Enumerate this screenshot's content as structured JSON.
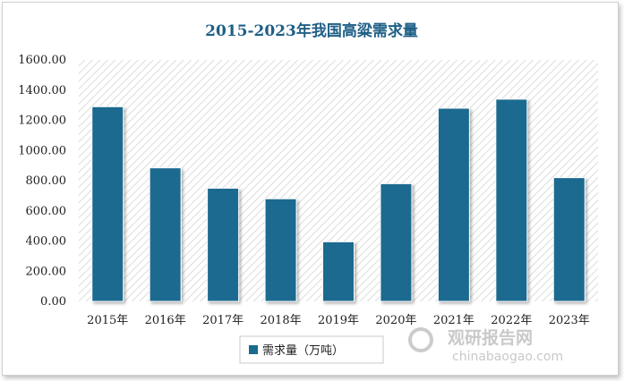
{
  "colors": {
    "bar": "#1a6a8f",
    "title": "#1f5f86",
    "plot_hatch": "#dcdcdc",
    "watermark": "#c9c9c9"
  },
  "watermark": {
    "brand": "观研报告网",
    "url": "chinabaogao.com"
  },
  "chart_data": {
    "type": "bar",
    "title": "2015-2023年我国高粱需求量",
    "categories": [
      "2015年",
      "2016年",
      "2017年",
      "2018年",
      "2019年",
      "2020年",
      "2021年",
      "2022年",
      "2023年"
    ],
    "series": [
      {
        "name": "需求量（万吨）",
        "values": [
          1290,
          885,
          750,
          680,
          395,
          780,
          1280,
          1340,
          820
        ]
      }
    ],
    "y_ticks": [
      "0.00",
      "200.00",
      "400.00",
      "600.00",
      "800.00",
      "1000.00",
      "1200.00",
      "1400.00",
      "1600.00"
    ],
    "ylim": [
      0,
      1600
    ],
    "xlabel": "",
    "ylabel": "",
    "grid": false,
    "legend_position": "bottom"
  }
}
